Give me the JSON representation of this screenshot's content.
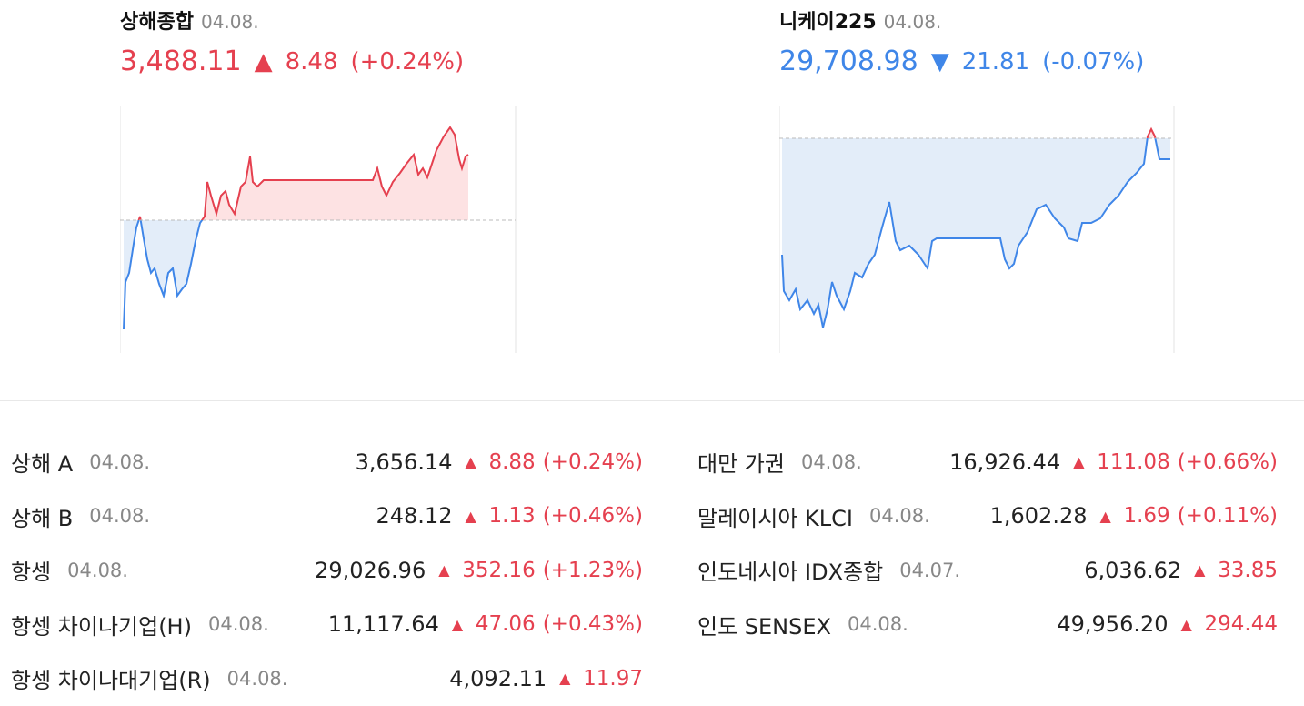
{
  "main_indices": [
    {
      "name": "상해종합",
      "date": "04.08.",
      "price": "3,488.11",
      "change": "8.48",
      "change_rate": "(+0.24%)",
      "direction": "up"
    },
    {
      "name": "니케이225",
      "date": "04.08.",
      "price": "29,708.98",
      "change": "21.81",
      "change_rate": "(-0.07%)",
      "direction": "down"
    }
  ],
  "list": {
    "left": [
      {
        "name": "상해 A",
        "date": "04.08.",
        "price": "3,656.14",
        "change": "8.88",
        "change_rate": "(+0.24%)",
        "direction": "up"
      },
      {
        "name": "상해 B",
        "date": "04.08.",
        "price": "248.12",
        "change": "1.13",
        "change_rate": "(+0.46%)",
        "direction": "up"
      },
      {
        "name": "항셍",
        "date": "04.08.",
        "price": "29,026.96",
        "change": "352.16",
        "change_rate": "(+1.23%)",
        "direction": "up"
      },
      {
        "name": "항셍 차이나기업(H)",
        "date": "04.08.",
        "price": "11,117.64",
        "change": "47.06",
        "change_rate": "(+0.43%)",
        "direction": "up"
      },
      {
        "name": "항셍 차이나대기업(R)",
        "date": "04.08.",
        "price": "4,092.11",
        "change": "11.97",
        "direction": "up"
      }
    ],
    "right": [
      {
        "name": "대만 가권",
        "date": "04.08.",
        "price": "16,926.44",
        "change": "111.08",
        "change_rate": "(+0.66%)",
        "direction": "up"
      },
      {
        "name": "말레이시아 KLCI",
        "date": "04.08.",
        "price": "1,602.28",
        "change": "1.69",
        "change_rate": "(+0.11%)",
        "direction": "up"
      },
      {
        "name": "인도네시아 IDX종합",
        "date": "04.07.",
        "price": "6,036.62",
        "change": "33.85",
        "direction": "up"
      },
      {
        "name": "인도 SENSEX",
        "date": "04.08.",
        "price": "49,956.20",
        "change": "294.44",
        "direction": "up"
      }
    ]
  }
}
